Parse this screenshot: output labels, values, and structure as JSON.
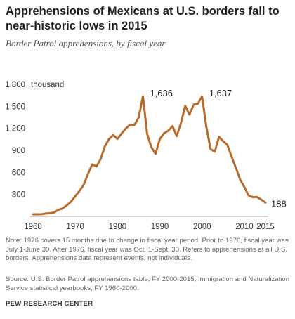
{
  "header": {
    "title": "Apprehensions of Mexicans at U.S. borders fall to near-historic lows in 2015",
    "subtitle": "Border Patrol apprehensions, by fiscal year"
  },
  "footer": {
    "note": "Note: 1976 covers 15 months due to change in fiscal year period. Prior to 1976, fiscal year was July 1-June 30. After 1976, fiscal year was Oct. 1-Sept. 30. Refers to apprehensions at all U.S. borders. Apprehensions data represent events, not individuals.",
    "source": "Source: U.S. Border Patrol apprehensions table, FY 2000-2015; Immigration and Naturalization Service statistical yearbooks, FY 1960-2000.",
    "org": "PEW RESEARCH CENTER"
  },
  "colors": {
    "line": "#b86b2b",
    "text": "#222222",
    "muted": "#666666"
  },
  "chart_data": {
    "type": "line",
    "unit_label": "thousand",
    "xlim": [
      1960,
      2015
    ],
    "ylim": [
      0,
      1800
    ],
    "x_ticks": [
      1960,
      1970,
      1980,
      1990,
      2000,
      2010,
      2015
    ],
    "y_ticks": [
      {
        "value": 300,
        "label": "300"
      },
      {
        "value": 600,
        "label": "600"
      },
      {
        "value": 900,
        "label": "900"
      },
      {
        "value": 1200,
        "label": "1,200"
      },
      {
        "value": 1500,
        "label": "1,500"
      },
      {
        "value": 1800,
        "label": "1,800"
      }
    ],
    "grid": false,
    "series": [
      {
        "x": [
          1960,
          1961,
          1962,
          1963,
          1964,
          1965,
          1966,
          1967,
          1968,
          1969,
          1970,
          1971,
          1972,
          1973,
          1974,
          1975,
          1976,
          1977,
          1978,
          1979,
          1980,
          1981,
          1982,
          1983,
          1984,
          1985,
          1986,
          1987,
          1988,
          1989,
          1990,
          1991,
          1992,
          1993,
          1994,
          1995,
          1996,
          1997,
          1998,
          1999,
          2000,
          2001,
          2002,
          2003,
          2004,
          2005,
          2006,
          2007,
          2008,
          2009,
          2010,
          2011,
          2012,
          2013,
          2014,
          2015
        ],
        "values": [
          29,
          29,
          30,
          39,
          43,
          55,
          90,
          108,
          151,
          202,
          277,
          348,
          430,
          577,
          710,
          680,
          781,
          955,
          1056,
          1107,
          1057,
          1135,
          1200,
          1251,
          1246,
          1349,
          1636,
          1123,
          943,
          854,
          1054,
          1133,
          1168,
          1230,
          1094,
          1271,
          1507,
          1387,
          1523,
          1535,
          1637,
          1224,
          918,
          882,
          1085,
          1024,
          973,
          808,
          662,
          503,
          400,
          286,
          262,
          265,
          229,
          188
        ]
      }
    ],
    "annotations": [
      {
        "x": 1986,
        "y": 1636,
        "text": "1,636"
      },
      {
        "x": 2000,
        "y": 1637,
        "text": "1,637"
      },
      {
        "x": 2015,
        "y": 188,
        "text": "188"
      }
    ]
  }
}
